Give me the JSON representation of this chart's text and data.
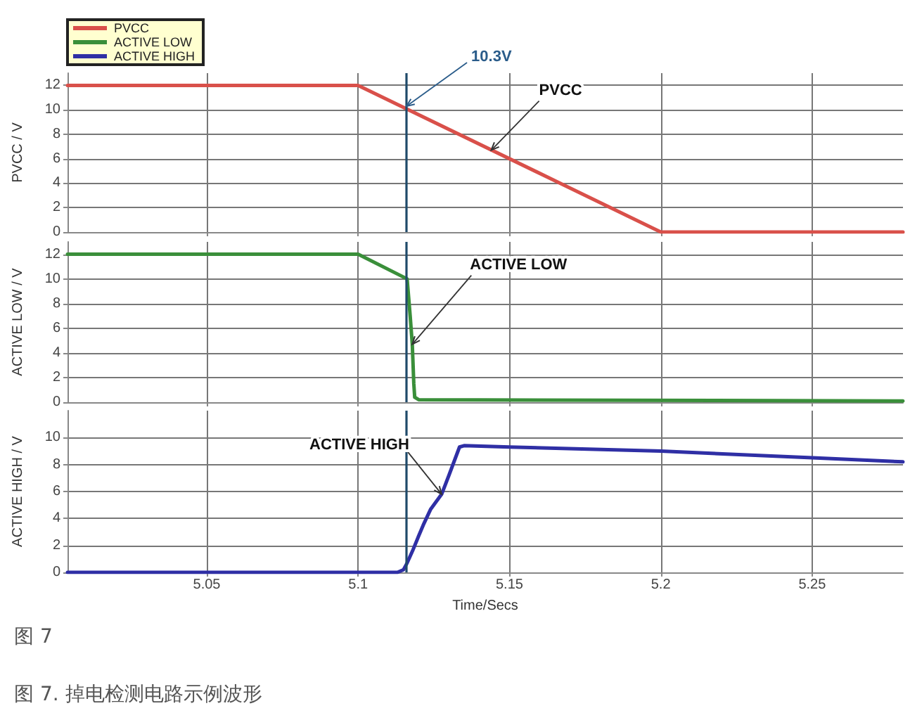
{
  "chart_data": [
    {
      "type": "line",
      "ylabel": "PVCC / V",
      "series": [
        {
          "name": "PVCC",
          "color": "#d9504a",
          "x": [
            5.004,
            5.1,
            5.2,
            5.28
          ],
          "values": [
            12,
            12,
            0,
            0
          ]
        }
      ],
      "xlim": [
        5.004,
        5.28
      ],
      "xticks": [
        5.05,
        5.1,
        5.15,
        5.2,
        5.25
      ],
      "ylim": [
        0,
        13
      ],
      "yticks": [
        0,
        2,
        4,
        6,
        8,
        10,
        12
      ],
      "tick_labels": "y",
      "grid": true,
      "legend": "top left",
      "marker": "none",
      "line_style": "solid",
      "ref_lines": [
        {
          "axis": "x",
          "value": 5.116,
          "color": "#1f4a6a"
        }
      ],
      "annotations": [
        {
          "text": "10.3V",
          "x": 5.116,
          "y": 10.3
        },
        {
          "text": "PVCC",
          "x": 5.144,
          "y": 6.7
        }
      ]
    },
    {
      "type": "line",
      "ylabel": "ACTIVE LOW / V",
      "series": [
        {
          "name": "ACTIVE LOW",
          "color": "#3a8f3a",
          "x": [
            5.004,
            5.1,
            5.1162,
            5.1167,
            5.1172,
            5.1179,
            5.1184,
            5.1187,
            5.12,
            5.28
          ],
          "values": [
            12,
            12,
            10,
            8.5,
            7,
            4.7,
            1.5,
            0.4,
            0.2,
            0.1
          ]
        }
      ],
      "xlim": [
        5.004,
        5.28
      ],
      "xticks": [
        5.05,
        5.1,
        5.15,
        5.2,
        5.25
      ],
      "ylim": [
        0,
        13
      ],
      "yticks": [
        0,
        2,
        4,
        6,
        8,
        10,
        12
      ],
      "tick_labels": "y",
      "grid": true,
      "marker": "none",
      "line_style": "solid",
      "ref_lines": [
        {
          "axis": "x",
          "value": 5.116,
          "color": "#1f4a6a"
        }
      ]
    },
    {
      "type": "line",
      "xlabel": "Time/Secs",
      "ylabel": "ACTIVE HIGH / V",
      "series": [
        {
          "name": "ACTIVE HIGH",
          "color": "#2f2fa5",
          "x": [
            5.004,
            5.113,
            5.115,
            5.1162,
            5.118,
            5.12,
            5.1215,
            5.124,
            5.1276,
            5.13,
            5.1335,
            5.135,
            5.15,
            5.2,
            5.25,
            5.28
          ],
          "values": [
            0,
            0,
            0.2,
            0.7,
            1.6,
            2.7,
            3.5,
            4.7,
            5.8,
            7.2,
            9.3,
            9.4,
            9.3,
            9,
            8.5,
            8.2
          ]
        }
      ],
      "xlim": [
        5.004,
        5.28
      ],
      "xticks": [
        5.05,
        5.1,
        5.15,
        5.2,
        5.25
      ],
      "ylim": [
        0,
        12
      ],
      "yticks": [
        0,
        2,
        4,
        6,
        8,
        10
      ],
      "grid": true,
      "marker": "none",
      "line_style": "solid",
      "ref_lines": [
        {
          "axis": "x",
          "value": 5.116,
          "color": "#1f4a6a"
        }
      ],
      "annotations": [
        "图 7",
        "图 7. 掉电检测电路示例波形"
      ]
    }
  ]
}
